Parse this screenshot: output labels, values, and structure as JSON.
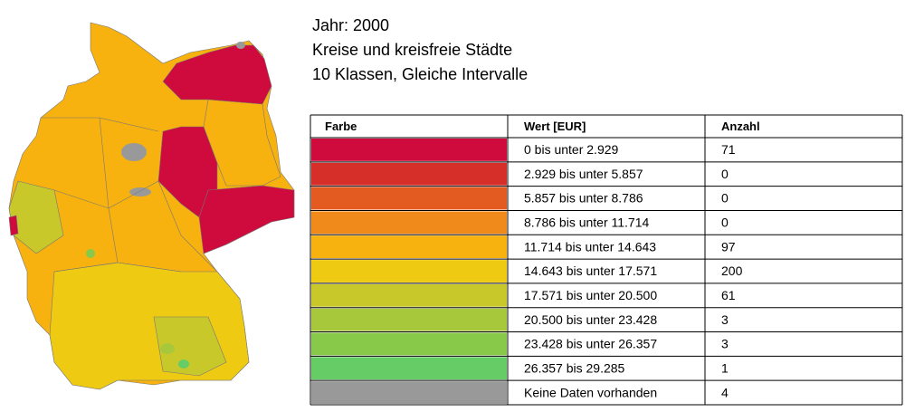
{
  "title_lines": [
    "Jahr: 2000",
    "Kreise und kreisfreie Städte",
    "10 Klassen, Gleiche Intervalle"
  ],
  "table": {
    "headers": [
      "Farbe",
      "Wert [EUR]",
      "Anzahl"
    ],
    "rows": [
      {
        "color": "#cf0a3c",
        "range": "0 bis unter 2.929",
        "count": "71"
      },
      {
        "color": "#d62f29",
        "range": "2.929 bis unter 5.857",
        "count": "0"
      },
      {
        "color": "#e35b21",
        "range": "5.857 bis unter 8.786",
        "count": "0"
      },
      {
        "color": "#f08a1a",
        "range": "8.786 bis unter 11.714",
        "count": "0"
      },
      {
        "color": "#f7b20f",
        "range": "11.714 bis unter 14.643",
        "count": "97"
      },
      {
        "color": "#eecb12",
        "range": "14.643 bis unter 17.571",
        "count": "200"
      },
      {
        "color": "#c9c82a",
        "range": "17.571 bis unter 20.500",
        "count": "61"
      },
      {
        "color": "#a8c83c",
        "range": "20.500 bis unter 23.428",
        "count": "3"
      },
      {
        "color": "#88c94a",
        "range": "23.428 bis unter 26.357",
        "count": "3"
      },
      {
        "color": "#66cc66",
        "range": "26.357 bis 29.285",
        "count": "1"
      },
      {
        "color": "#999999",
        "range": "Keine Daten vorhanden",
        "count": "4"
      }
    ]
  }
}
